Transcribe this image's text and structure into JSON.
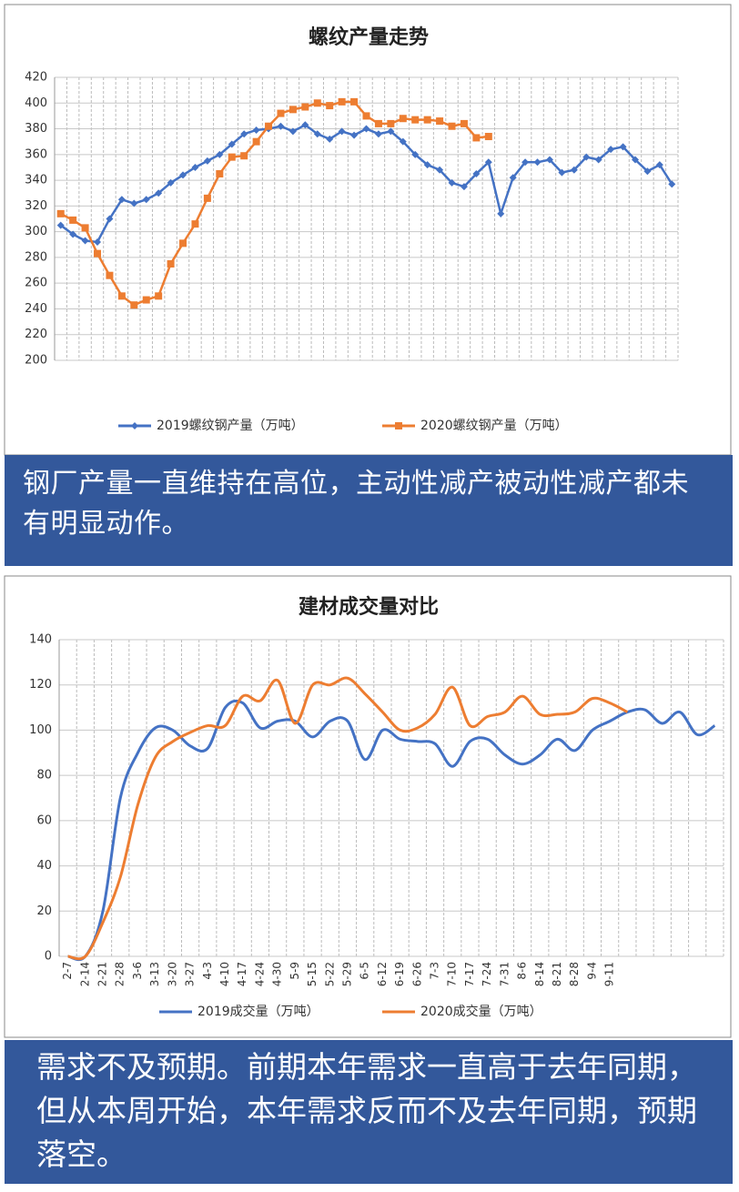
{
  "chart_data": [
    {
      "type": "line",
      "title": "螺纹产量走势",
      "categories": [
        null,
        null,
        null,
        null,
        null,
        null,
        null,
        null,
        null,
        null,
        null,
        null,
        null,
        null,
        null,
        null,
        null,
        null,
        null,
        null,
        null,
        null,
        null,
        null,
        null,
        null,
        null,
        null,
        null,
        null,
        null,
        null,
        null,
        null,
        null,
        null,
        null,
        null,
        null,
        null,
        null,
        null,
        null,
        null,
        null,
        null,
        null,
        null,
        null,
        null,
        null
      ],
      "series": [
        {
          "name": "2019螺纹钢产量（万吨）",
          "color": "#4472c4",
          "marker": "diamond",
          "values": [
            305,
            298,
            293,
            292,
            310,
            325,
            322,
            325,
            330,
            338,
            344,
            350,
            355,
            360,
            368,
            376,
            379,
            380,
            382,
            378,
            383,
            376,
            372,
            378,
            375,
            380,
            376,
            378,
            370,
            360,
            352,
            348,
            338,
            335,
            345,
            354,
            314,
            342,
            354,
            354,
            356,
            346,
            348,
            358,
            356,
            364,
            366,
            356,
            347,
            352,
            337
          ]
        },
        {
          "name": "2020螺纹钢产量（万吨）",
          "color": "#ed7d31",
          "marker": "square",
          "values": [
            314,
            309,
            303,
            283,
            266,
            250,
            243,
            247,
            250,
            275,
            291,
            306,
            326,
            345,
            358,
            359,
            370,
            382,
            392,
            395,
            397,
            400,
            398,
            401,
            401,
            390,
            384,
            384,
            388,
            387,
            387,
            386,
            382,
            384,
            373,
            374,
            null,
            null,
            null,
            null,
            null,
            null,
            null,
            null,
            null,
            null,
            null,
            null,
            null,
            null,
            null
          ]
        }
      ],
      "ylim": [
        200,
        420
      ],
      "yticks": [
        200,
        220,
        240,
        260,
        280,
        300,
        320,
        340,
        360,
        380,
        400,
        420
      ],
      "grid": true,
      "smooth": false
    },
    {
      "type": "line",
      "title": "建材成交量对比",
      "categories": [
        "2-7",
        "2-14",
        "2-21",
        "2-28",
        "3-6",
        "3-13",
        "3-20",
        "3-27",
        "4-3",
        "4-10",
        "4-17",
        "4-24",
        "4-30",
        "5-9",
        "5-15",
        "5-22",
        "5-29",
        "6-5",
        "6-12",
        "6-19",
        "6-26",
        "7-3",
        "7-10",
        "7-17",
        "7-24",
        "7-31",
        "8-6",
        "8-14",
        "8-21",
        "8-28",
        "9-4",
        "9-11",
        null,
        null,
        null,
        null,
        null,
        null
      ],
      "series": [
        {
          "name": "2019成交量（万吨）",
          "color": "#4472c4",
          "marker": null,
          "values": [
            0,
            0,
            20,
            70,
            90,
            101,
            100,
            93,
            92,
            110,
            112,
            101,
            104,
            104,
            97,
            104,
            104,
            87,
            100,
            96,
            95,
            94,
            84,
            95,
            96,
            89,
            85,
            89,
            96,
            91,
            100,
            104,
            108,
            109,
            103,
            108,
            98,
            102
          ]
        },
        {
          "name": "2020成交量（万吨）",
          "color": "#ed7d31",
          "marker": null,
          "values": [
            0,
            0,
            15,
            35,
            67,
            88,
            95,
            99,
            102,
            102,
            115,
            113,
            122,
            103,
            120,
            120,
            123,
            116,
            108,
            100,
            101,
            107,
            119,
            102,
            106,
            108,
            115,
            107,
            107,
            108,
            114,
            112,
            108,
            null,
            null,
            null,
            null,
            null
          ]
        }
      ],
      "ylim": [
        0,
        140
      ],
      "yticks": [
        0,
        20,
        40,
        60,
        80,
        100,
        120,
        140
      ],
      "grid": true,
      "smooth": true
    }
  ],
  "captions": [
    "钢厂产量一直维持在高位，主动性减产被动性减产都未有明显动作。",
    "需求不及预期。前期本年需求一直高于去年同期，但从本周开始，本年需求反而不及去年同期，预期落空。"
  ]
}
